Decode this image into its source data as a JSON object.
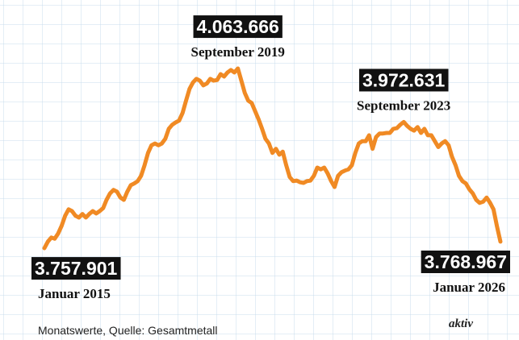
{
  "chart_data": {
    "type": "line",
    "note": "Monatswerte, Quelle: Gesamtmetall",
    "brand": "aktiv",
    "series": [
      {
        "color": "#f08a24",
        "values": [
          3757901,
          3769000,
          3776000,
          3774000,
          3783000,
          3796000,
          3813000,
          3824000,
          3821000,
          3813000,
          3810000,
          3816000,
          3810000,
          3816000,
          3821000,
          3817000,
          3821000,
          3826000,
          3840000,
          3851000,
          3857000,
          3854000,
          3844000,
          3840000,
          3854000,
          3865000,
          3868000,
          3872000,
          3881000,
          3899000,
          3920000,
          3933000,
          3936000,
          3933000,
          3936000,
          3944000,
          3961000,
          3968000,
          3972000,
          3975000,
          3988000,
          4009000,
          4029000,
          4040000,
          4046000,
          4043000,
          4035000,
          4038000,
          4046000,
          4043000,
          4044000,
          4054000,
          4050000,
          4057000,
          4061000,
          4057000,
          4063666,
          4043000,
          4022000,
          4009000,
          4005000,
          3991000,
          3977000,
          3961000,
          3944000,
          3936000,
          3920000,
          3927000,
          3917000,
          3922000,
          3899000,
          3879000,
          3872000,
          3873000,
          3870000,
          3869000,
          3872000,
          3873000,
          3881000,
          3895000,
          3892000,
          3895000,
          3885000,
          3872000,
          3862000,
          3881000,
          3887000,
          3890000,
          3892000,
          3899000,
          3920000,
          3936000,
          3940000,
          3940000,
          3950000,
          3927000,
          3947000,
          3953000,
          3953000,
          3954000,
          3954000,
          3961000,
          3962000,
          3968000,
          3972631,
          3966000,
          3961000,
          3958000,
          3964000,
          3954000,
          3961000,
          3950000,
          3950000,
          3940000,
          3930000,
          3936000,
          3940000,
          3933000,
          3913000,
          3899000,
          3881000,
          3872000,
          3868000,
          3858000,
          3851000,
          3840000,
          3835000,
          3837000,
          3844000,
          3835000,
          3824000,
          3795000,
          3768967
        ],
        "value_labels": [
          "3.757.901",
          null,
          null,
          null,
          null,
          null,
          null,
          null,
          null,
          null,
          null,
          null,
          null,
          null,
          null,
          null,
          null,
          null,
          null,
          null,
          null,
          null,
          null,
          null,
          null,
          null,
          null,
          null,
          null,
          null,
          null,
          null,
          null,
          null,
          null,
          null,
          null,
          null,
          null,
          null,
          null,
          null,
          null,
          null,
          null,
          null,
          null,
          null,
          null,
          null,
          null,
          null,
          null,
          null,
          null,
          null,
          "4.063.666",
          null,
          null,
          null,
          null,
          null,
          null,
          null,
          null,
          null,
          null,
          null,
          null,
          null,
          null,
          null,
          null,
          null,
          null,
          null,
          null,
          null,
          null,
          null,
          null,
          null,
          null,
          null,
          null,
          null,
          null,
          null,
          null,
          null,
          null,
          null,
          null,
          null,
          null,
          null,
          null,
          null,
          null,
          null,
          null,
          null,
          null,
          null,
          "3.972.631",
          null,
          null,
          null,
          null,
          null,
          null,
          null,
          null,
          null,
          null,
          null,
          null,
          null,
          null,
          null,
          null,
          null,
          null,
          null,
          null,
          null,
          null,
          null,
          null,
          null,
          null,
          null,
          "3.768.967"
        ],
        "date_labels": [
          "Januar 2015",
          null,
          null,
          null,
          null,
          null,
          null,
          null,
          null,
          null,
          null,
          null,
          null,
          null,
          null,
          null,
          null,
          null,
          null,
          null,
          null,
          null,
          null,
          null,
          null,
          null,
          null,
          null,
          null,
          null,
          null,
          null,
          null,
          null,
          null,
          null,
          null,
          null,
          null,
          null,
          null,
          null,
          null,
          null,
          null,
          null,
          null,
          null,
          null,
          null,
          null,
          null,
          null,
          null,
          null,
          null,
          "September 2019",
          null,
          null,
          null,
          null,
          null,
          null,
          null,
          null,
          null,
          null,
          null,
          null,
          null,
          null,
          null,
          null,
          null,
          null,
          null,
          null,
          null,
          null,
          null,
          null,
          null,
          null,
          null,
          null,
          null,
          null,
          null,
          null,
          null,
          null,
          null,
          null,
          null,
          null,
          null,
          null,
          null,
          null,
          null,
          null,
          null,
          null,
          null,
          "September 2023",
          null,
          null,
          null,
          null,
          null,
          null,
          null,
          null,
          null,
          null,
          null,
          null,
          null,
          null,
          null,
          null,
          null,
          null,
          null,
          null,
          null,
          null,
          null,
          null,
          null,
          null,
          null,
          "Januar 2026"
        ]
      }
    ]
  }
}
